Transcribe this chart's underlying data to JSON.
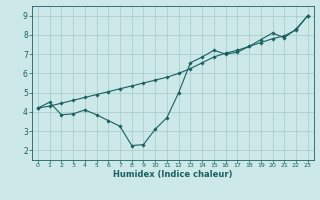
{
  "xlabel": "Humidex (Indice chaleur)",
  "bg_color": "#cce8e8",
  "grid_color": "#aacfcf",
  "line_color": "#1a6060",
  "xlim": [
    -0.5,
    23.5
  ],
  "ylim": [
    1.5,
    9.5
  ],
  "xticks": [
    0,
    1,
    2,
    3,
    4,
    5,
    6,
    7,
    8,
    9,
    10,
    11,
    12,
    13,
    14,
    15,
    16,
    17,
    18,
    19,
    20,
    21,
    22,
    23
  ],
  "yticks": [
    2,
    3,
    4,
    5,
    6,
    7,
    8,
    9
  ],
  "series1_x": [
    0,
    1,
    2,
    3,
    4,
    5,
    6,
    7,
    8,
    9,
    10,
    11,
    12,
    13,
    14,
    15,
    16,
    17,
    18,
    19,
    20,
    21,
    22,
    23
  ],
  "series1_y": [
    4.2,
    4.5,
    3.85,
    3.9,
    4.1,
    3.85,
    3.55,
    3.25,
    2.25,
    2.3,
    3.1,
    3.7,
    5.0,
    6.55,
    6.85,
    7.2,
    7.0,
    7.1,
    7.4,
    7.75,
    8.1,
    7.85,
    8.3,
    9.0
  ],
  "series2_x": [
    0,
    1,
    2,
    3,
    4,
    5,
    6,
    7,
    8,
    9,
    10,
    11,
    12,
    13,
    14,
    15,
    16,
    17,
    18,
    19,
    20,
    21,
    22,
    23
  ],
  "series2_y": [
    4.2,
    4.3,
    4.45,
    4.6,
    4.75,
    4.9,
    5.05,
    5.2,
    5.35,
    5.5,
    5.65,
    5.8,
    6.0,
    6.25,
    6.55,
    6.85,
    7.05,
    7.2,
    7.4,
    7.6,
    7.8,
    7.95,
    8.25,
    9.0
  ],
  "xlabel_fontsize": 6.0,
  "xtick_fontsize": 4.5,
  "ytick_fontsize": 5.5,
  "marker_size": 1.8,
  "line_width": 0.8
}
